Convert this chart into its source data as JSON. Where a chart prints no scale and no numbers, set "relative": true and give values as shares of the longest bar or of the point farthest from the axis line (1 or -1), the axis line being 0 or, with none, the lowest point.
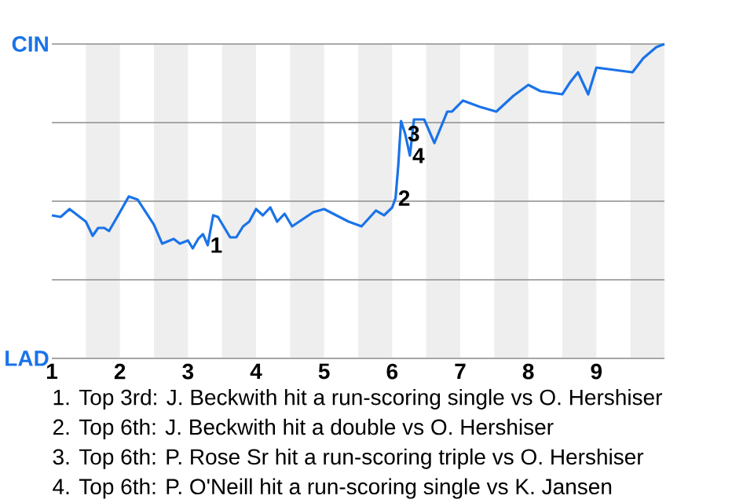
{
  "chart_data": {
    "type": "line",
    "color": "#1a73e8",
    "relative": true,
    "x": [
      1.0,
      1.13,
      1.26,
      1.5,
      1.6,
      1.68,
      1.77,
      1.84,
      2.0,
      2.13,
      2.26,
      2.5,
      2.62,
      2.79,
      2.88,
      3.0,
      3.07,
      3.15,
      3.22,
      3.29,
      3.37,
      3.44,
      3.62,
      3.71,
      3.81,
      3.9,
      4.0,
      4.1,
      4.21,
      4.31,
      4.42,
      4.53,
      4.84,
      5.0,
      5.36,
      5.55,
      5.76,
      5.88,
      6.0,
      6.05,
      6.09,
      6.13,
      6.19,
      6.26,
      6.32,
      6.47,
      6.62,
      6.81,
      6.88,
      7.04,
      7.29,
      7.53,
      7.78,
      8.0,
      8.18,
      8.5,
      8.62,
      8.73,
      8.88,
      9.0,
      9.18,
      9.53,
      9.69,
      9.88,
      10.0
    ],
    "values": [
      0.455,
      0.45,
      0.475,
      0.435,
      0.39,
      0.415,
      0.415,
      0.405,
      0.465,
      0.515,
      0.505,
      0.425,
      0.365,
      0.38,
      0.365,
      0.375,
      0.35,
      0.38,
      0.395,
      0.36,
      0.455,
      0.45,
      0.385,
      0.385,
      0.42,
      0.435,
      0.475,
      0.455,
      0.48,
      0.435,
      0.46,
      0.42,
      0.465,
      0.475,
      0.435,
      0.42,
      0.47,
      0.455,
      0.48,
      0.51,
      0.615,
      0.755,
      0.715,
      0.645,
      0.76,
      0.76,
      0.685,
      0.785,
      0.785,
      0.82,
      0.8,
      0.785,
      0.835,
      0.87,
      0.85,
      0.84,
      0.88,
      0.91,
      0.84,
      0.925,
      0.92,
      0.91,
      0.955,
      0.99,
      1
    ],
    "xlim": [
      1,
      10
    ],
    "xticks": [
      1,
      2,
      3,
      4,
      5,
      6,
      7,
      8,
      9
    ],
    "ref_lines": [
      {
        "axis": "y",
        "value": 0.25,
        "color": "#8c8c8c"
      },
      {
        "axis": "y",
        "value": 0.5,
        "color": "#8c8c8c"
      },
      {
        "axis": "y",
        "value": 0.75,
        "color": "#8c8c8c"
      },
      {
        "axis": "y",
        "value": 1,
        "color": "#8c8c8c"
      }
    ],
    "marker": "none",
    "line_style": "solid",
    "bands": [
      {
        "axis": "x",
        "from": 1.5,
        "to": 2,
        "color": "#eeeeee"
      },
      {
        "axis": "x",
        "from": 2.5,
        "to": 3,
        "color": "#eeeeee"
      },
      {
        "axis": "x",
        "from": 3.5,
        "to": 4,
        "color": "#eeeeee"
      },
      {
        "axis": "x",
        "from": 4.5,
        "to": 5,
        "color": "#eeeeee"
      },
      {
        "axis": "x",
        "from": 5.5,
        "to": 6,
        "color": "#eeeeee"
      },
      {
        "axis": "x",
        "from": 6.5,
        "to": 7,
        "color": "#eeeeee"
      },
      {
        "axis": "x",
        "from": 7.5,
        "to": 8,
        "color": "#eeeeee"
      },
      {
        "axis": "x",
        "from": 8.5,
        "to": 9,
        "color": "#eeeeee"
      },
      {
        "axis": "x",
        "from": 9.5,
        "to": 10,
        "color": "#eeeeee"
      }
    ],
    "annotations": [
      "CIN",
      "LAD",
      {
        "text": "1",
        "x": 3.29,
        "y": 0.36
      },
      {
        "text": "2",
        "x": 6.05,
        "y": 0.51
      },
      {
        "text": "3",
        "x": 6.19,
        "y": 0.715
      },
      {
        "text": "4",
        "x": 6.26,
        "y": 0.645
      },
      "1. Top 3rd: J. Beckwith hit a run-scoring single vs O. Hershiser",
      "2. Top 6th: J. Beckwith hit a double vs O. Hershiser",
      "3. Top 6th: P. Rose Sr hit a run-scoring triple vs O. Hershiser",
      "4. Top 6th: P. O'Neill hit a run-scoring single vs K. Jansen"
    ]
  }
}
